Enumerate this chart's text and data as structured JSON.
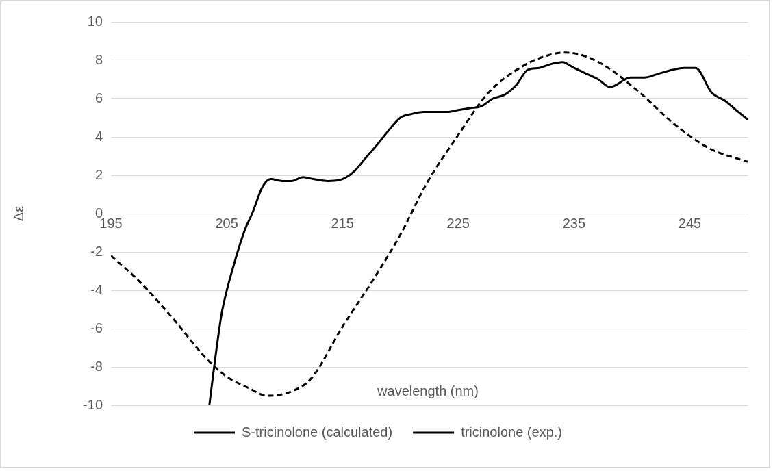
{
  "chart_data": {
    "type": "line",
    "xlabel": "wavelength (nm)",
    "ylabel": "Δε",
    "xlim": [
      195,
      250
    ],
    "xticks": [
      195,
      205,
      215,
      225,
      235,
      245
    ],
    "ylim": [
      -10,
      10
    ],
    "yticks": [
      -10,
      -8,
      -6,
      -4,
      -2,
      0,
      2,
      4,
      6,
      8,
      10
    ],
    "grid": "y",
    "legend": "bottom",
    "marker": "none",
    "series": [
      {
        "name": "S-tricinolone (calculated)",
        "color": "#000000",
        "line_style": "dashed",
        "x": [
          195,
          197.4,
          200.4,
          203.3,
          205,
          206.9,
          208.5,
          210.5,
          212.3,
          215,
          217.6,
          220,
          222.3,
          225,
          227.6,
          230.6,
          233,
          234.2,
          235.5,
          237.7,
          240.7,
          243.6,
          246.7,
          250
        ],
        "values": [
          -2.2,
          -3.5,
          -5.5,
          -7.6,
          -8.5,
          -9.1,
          -9.5,
          -9.3,
          -8.6,
          -5.9,
          -3.5,
          -1.1,
          1.6,
          4.1,
          6.3,
          7.7,
          8.3,
          8.4,
          8.3,
          7.7,
          6.3,
          4.7,
          3.4,
          2.7
        ]
      },
      {
        "name": "tricinolone (exp.)",
        "color": "#000000",
        "line_style": "solid",
        "x": [
          203.5,
          204.2,
          204.6,
          205.7,
          206.6,
          207.2,
          208.1,
          208.8,
          209.8,
          210.6,
          211.6,
          212.5,
          213.7,
          215,
          216,
          217,
          218,
          218.8,
          220,
          221,
          222,
          223,
          224,
          225,
          226,
          227,
          228,
          229,
          230,
          231,
          232,
          233,
          234,
          235,
          235.7,
          237.1,
          238.1,
          239.9,
          241.1,
          242.3,
          243.5,
          244.5,
          245.5,
          246.9,
          248,
          249,
          250
        ],
        "values": [
          -10,
          -6.7,
          -5.1,
          -2.5,
          -0.8,
          0,
          1.4,
          1.8,
          1.7,
          1.7,
          1.9,
          1.8,
          1.7,
          1.8,
          2.2,
          2.9,
          3.6,
          4.2,
          5,
          5.2,
          5.3,
          5.3,
          5.3,
          5.4,
          5.5,
          5.6,
          6,
          6.2,
          6.7,
          7.5,
          7.6,
          7.8,
          7.9,
          7.6,
          7.4,
          7,
          6.6,
          7.1,
          7.1,
          7.3,
          7.5,
          7.6,
          7.6,
          6.3,
          5.9,
          5.4,
          4.9
        ]
      }
    ]
  }
}
